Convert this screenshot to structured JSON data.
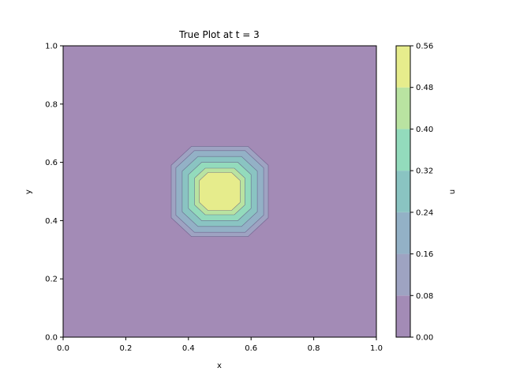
{
  "chart_data": {
    "type": "contour",
    "title": "True Plot at t = 3",
    "xlabel": "x",
    "ylabel": "y",
    "xlim": [
      0.0,
      1.0
    ],
    "ylim": [
      0.0,
      1.0
    ],
    "x_ticks": [
      "0.0",
      "0.2",
      "0.4",
      "0.6",
      "0.8",
      "1.0"
    ],
    "y_ticks": [
      "0.0",
      "0.2",
      "0.4",
      "0.6",
      "0.8",
      "1.0"
    ],
    "colorbar": {
      "label": "u",
      "range": [
        0.0,
        0.56
      ],
      "ticks": [
        "0.00",
        "0.08",
        "0.16",
        "0.24",
        "0.32",
        "0.40",
        "0.48",
        "0.56"
      ]
    },
    "levels": [
      {
        "min": 0.0,
        "max": 0.08,
        "color": "#a38bb6",
        "half_width": null
      },
      {
        "min": 0.08,
        "max": 0.16,
        "color": "#9ea3c2",
        "half_width": 0.155
      },
      {
        "min": 0.16,
        "max": 0.24,
        "color": "#93b1c6",
        "half_width": 0.14
      },
      {
        "min": 0.24,
        "max": 0.32,
        "color": "#8ac4c2",
        "half_width": 0.12
      },
      {
        "min": 0.32,
        "max": 0.4,
        "color": "#93dbbc",
        "half_width": 0.1
      },
      {
        "min": 0.4,
        "max": 0.48,
        "color": "#b9e3a1",
        "half_width": 0.08
      },
      {
        "min": 0.48,
        "max": 0.56,
        "color": "#e6ec8c",
        "half_width": 0.065
      }
    ],
    "peak_center": [
      0.5,
      0.5
    ],
    "grid": false
  }
}
